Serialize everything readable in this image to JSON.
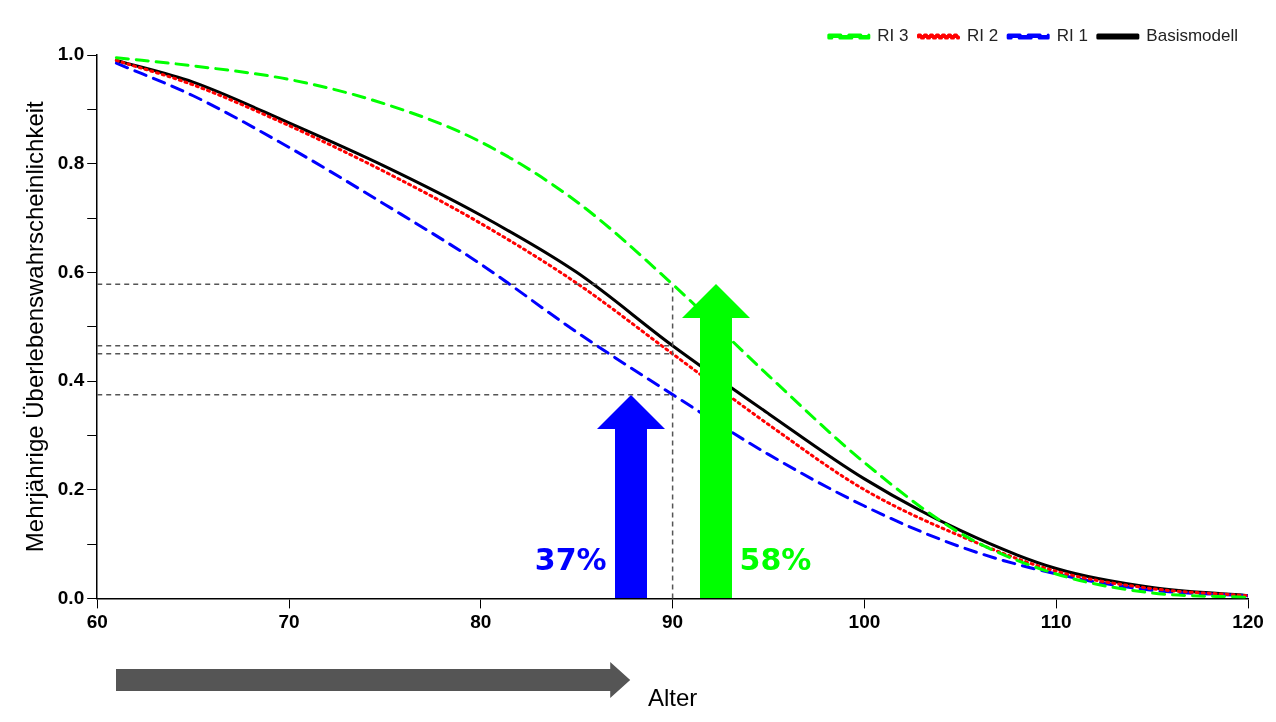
{
  "chart_data": {
    "type": "line",
    "xlabel": "Alter",
    "ylabel": "Mehrjährige Überlebenswahrscheinlichkeit",
    "x": [
      61,
      65,
      70,
      75,
      80,
      85,
      90,
      95,
      100,
      105,
      110,
      115,
      120
    ],
    "series": [
      {
        "name": "Basismodell",
        "color": "#000000",
        "line_style": "solid",
        "values": [
          0.99,
          0.95,
          0.875,
          0.795,
          0.705,
          0.6,
          0.465,
          0.34,
          0.22,
          0.125,
          0.055,
          0.02,
          0.005
        ]
      },
      {
        "name": "RI 1",
        "color": "#0000ff",
        "line_style": "dashed",
        "values": [
          0.985,
          0.925,
          0.83,
          0.725,
          0.615,
          0.49,
          0.375,
          0.265,
          0.17,
          0.095,
          0.045,
          0.015,
          0.005
        ]
      },
      {
        "name": "RI 2",
        "color": "#ff0000",
        "line_style": "dotted",
        "values": [
          0.99,
          0.945,
          0.87,
          0.785,
          0.69,
          0.58,
          0.45,
          0.32,
          0.2,
          0.115,
          0.05,
          0.018,
          0.005
        ]
      },
      {
        "name": "RI 3",
        "color": "#00ff00",
        "line_style": "dashed",
        "values": [
          0.995,
          0.98,
          0.955,
          0.91,
          0.84,
          0.73,
          0.578,
          0.41,
          0.25,
          0.12,
          0.045,
          0.01,
          0.002
        ]
      }
    ],
    "xlim": [
      60,
      120
    ],
    "xticks": [
      60,
      70,
      80,
      90,
      100,
      110,
      120
    ],
    "ylim": [
      0,
      1
    ],
    "yticks": [
      {
        "value": 0,
        "label": "0.0"
      },
      {
        "value": 0.1,
        "label": null
      },
      {
        "value": 0.2,
        "label": "0.2"
      },
      {
        "value": 0.3,
        "label": null
      },
      {
        "value": 0.4,
        "label": "0.4"
      },
      {
        "value": 0.5,
        "label": null
      },
      {
        "value": 0.6,
        "label": "0.6"
      },
      {
        "value": 0.7,
        "label": null
      },
      {
        "value": 0.8,
        "label": "0.8"
      },
      {
        "value": 0.9,
        "label": null
      },
      {
        "value": 1,
        "label": "1.0"
      }
    ],
    "grid": false,
    "legend": "top right",
    "ref_lines": [
      {
        "axis": "x",
        "value": 90,
        "color": "#555555",
        "line_style": "dashed"
      },
      {
        "axis": "y",
        "value": 0.578,
        "color": "#555555",
        "line_style": "dashed"
      },
      {
        "axis": "y",
        "value": 0.465,
        "color": "#555555",
        "line_style": "dashed"
      },
      {
        "axis": "y",
        "value": 0.45,
        "color": "#555555",
        "line_style": "dashed"
      },
      {
        "axis": "y",
        "value": 0.375,
        "color": "#555555",
        "line_style": "dashed"
      }
    ],
    "annotations": [
      "37%",
      "58%"
    ]
  }
}
